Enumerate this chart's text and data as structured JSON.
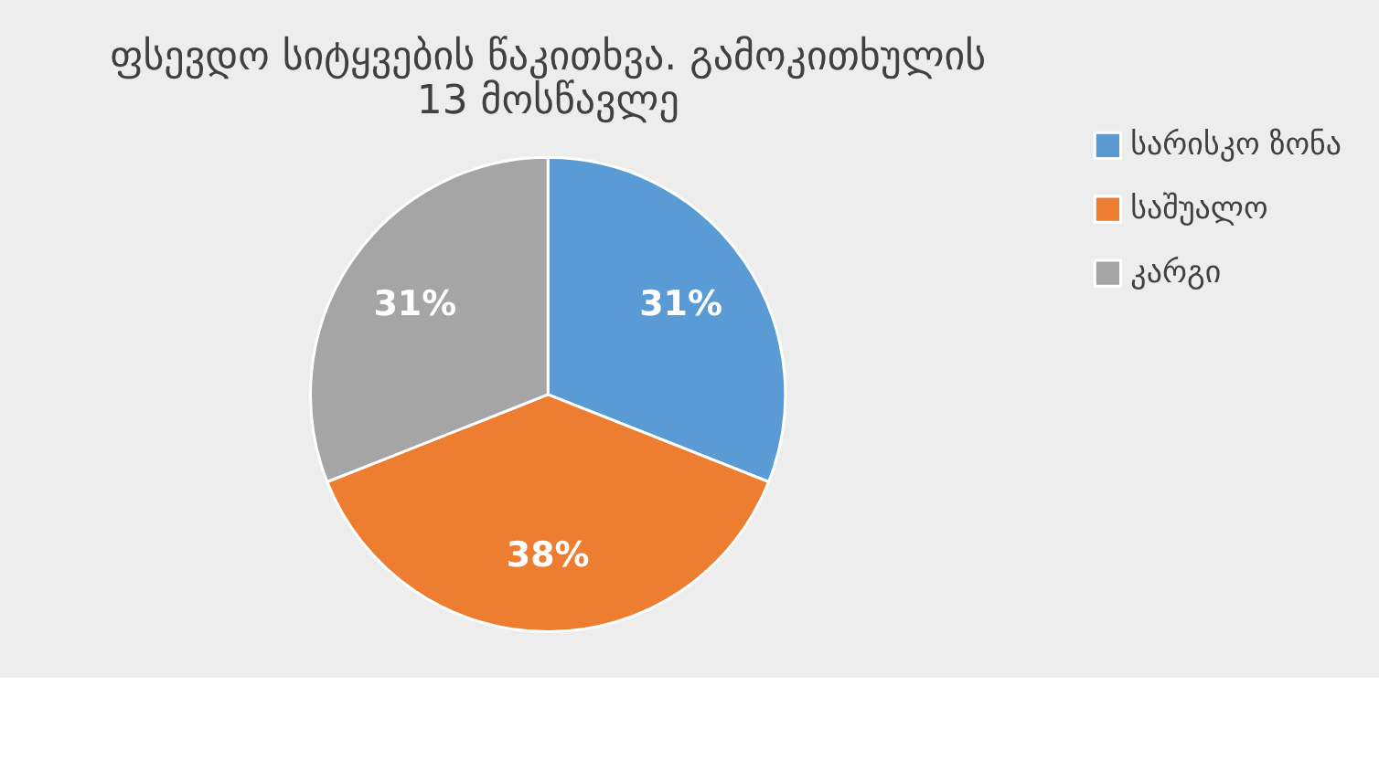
{
  "chart_data": {
    "type": "pie",
    "title": [
      "ფსევდო სიტყვების წაკითხვა. გამოკითხულის",
      "13 მოსწავლე"
    ],
    "categories": [
      "სარისკო ზონა",
      "საშუალო",
      "კარგი"
    ],
    "values": [
      31,
      38,
      31
    ],
    "colors": [
      "#5b9bd5",
      "#ed7d31",
      "#a5a5a5"
    ],
    "value_labels": [
      "31%",
      "38%",
      "31%"
    ],
    "legend": "right"
  }
}
